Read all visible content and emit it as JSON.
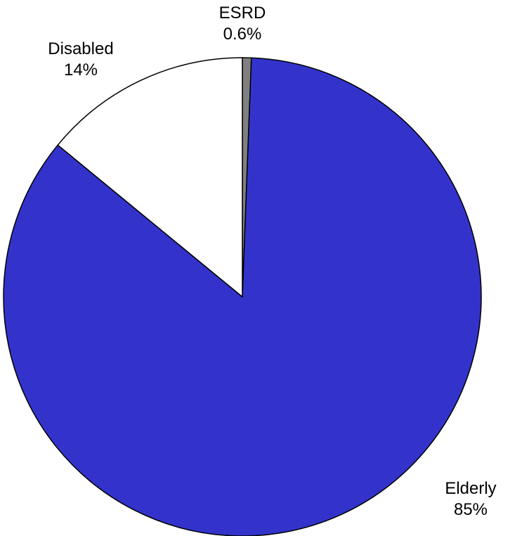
{
  "chart_data": {
    "type": "pie",
    "title": "",
    "slices": [
      {
        "label": "ESRD",
        "value": 0.6,
        "value_label": "0.6%",
        "color": "#808080"
      },
      {
        "label": "Elderly",
        "value": 85,
        "value_label": "85%",
        "color": "#3333CC"
      },
      {
        "label": "Disabled",
        "value": 14,
        "value_label": "14%",
        "color": "#FFFFFF"
      }
    ],
    "stroke_color": "#000000",
    "legend": "none"
  }
}
